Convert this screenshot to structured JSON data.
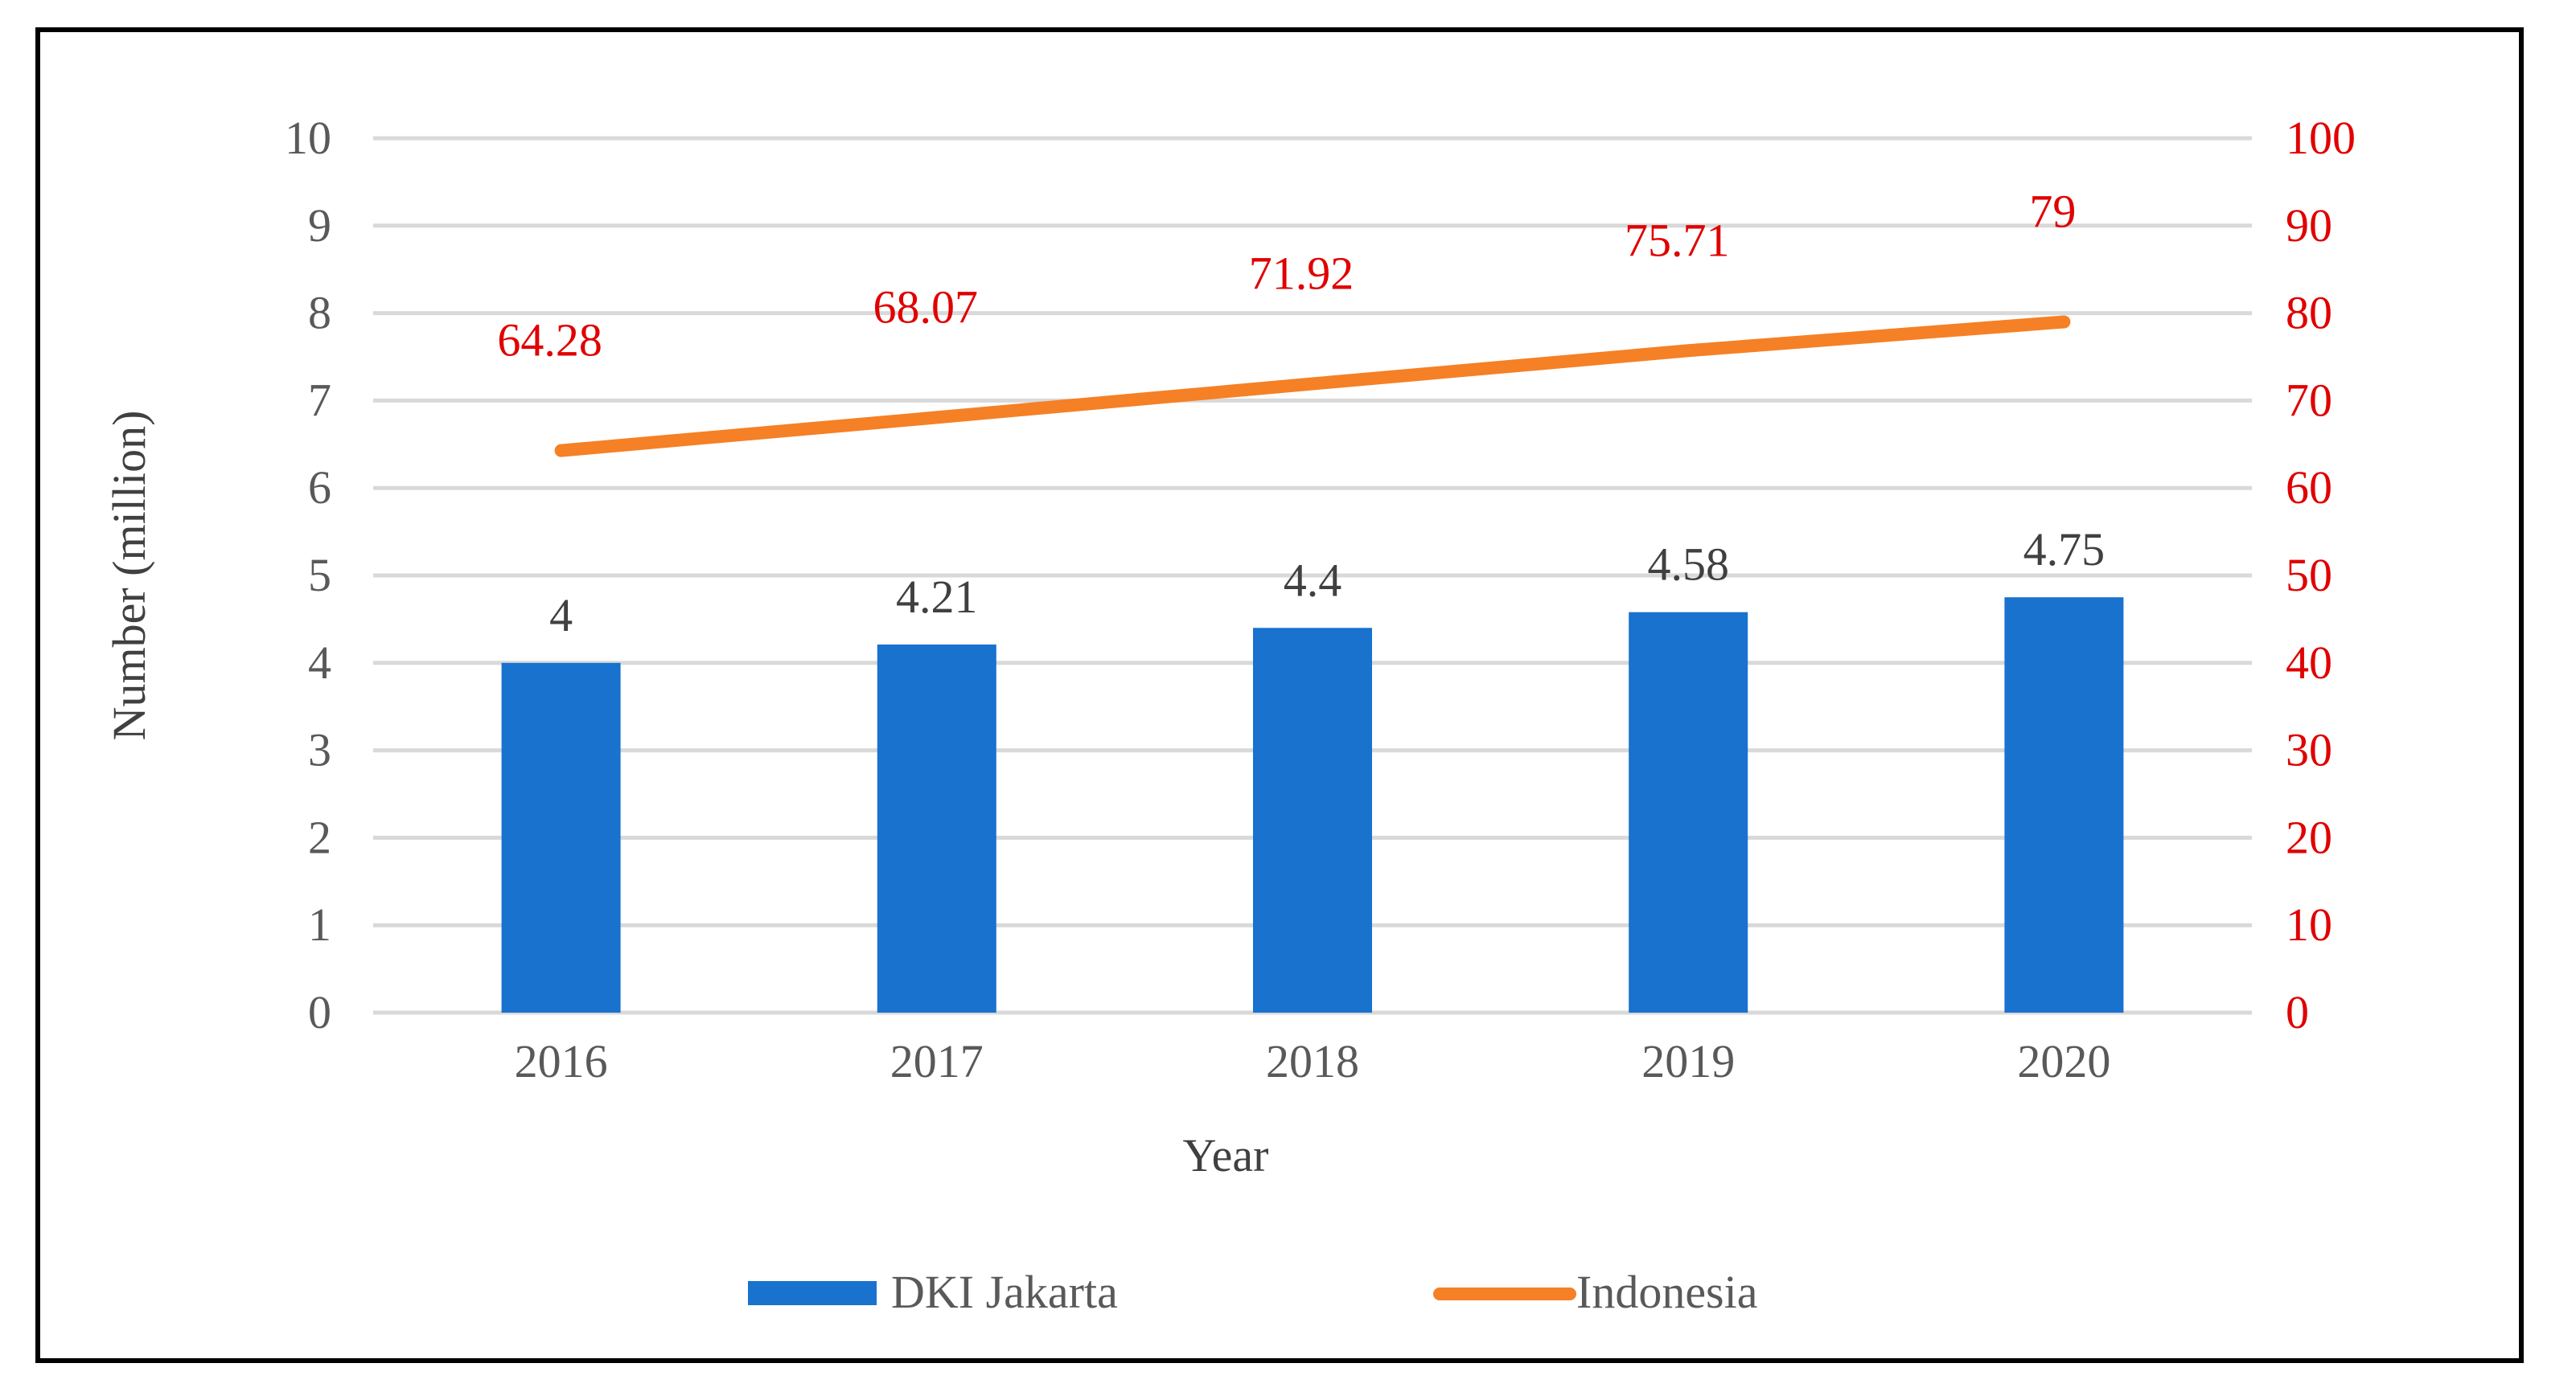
{
  "chart_data": {
    "type": "bar+line",
    "title": "",
    "xlabel": "Year",
    "ylabel": "Number (million)",
    "ylabel_right": "",
    "categories": [
      "2016",
      "2017",
      "2018",
      "2019",
      "2020"
    ],
    "ylim": [
      0,
      10
    ],
    "y_ticks": [
      "0",
      "1",
      "2",
      "3",
      "4",
      "5",
      "6",
      "7",
      "8",
      "9",
      "10"
    ],
    "ylim_right": [
      0,
      100
    ],
    "y_right_ticks": [
      "0",
      "10",
      "20",
      "30",
      "40",
      "50",
      "60",
      "70",
      "80",
      "90",
      "100"
    ],
    "grid": true,
    "legend_position": "bottom",
    "series": [
      {
        "name": "DKI Jakarta",
        "type": "bar",
        "axis": "left",
        "values": [
          4,
          4.21,
          4.4,
          4.58,
          4.75
        ],
        "labels": [
          "4",
          "4.21",
          "4.4",
          "4.58",
          "4.75"
        ],
        "color": "#1872CE"
      },
      {
        "name": "Indonesia",
        "type": "line",
        "axis": "right",
        "values": [
          64.28,
          68.07,
          71.92,
          75.71,
          79
        ],
        "labels": [
          "64.28",
          "68.07",
          "71.92",
          "75.71",
          "79"
        ],
        "color": "#F58025",
        "label_color": "#E00000"
      }
    ],
    "colors": {
      "left_axis_text": "#595959",
      "right_axis_text": "#E00000",
      "bar_label_text": "#404040",
      "axis_title_text": "#404040",
      "gridline": "#D9D9D9"
    }
  }
}
